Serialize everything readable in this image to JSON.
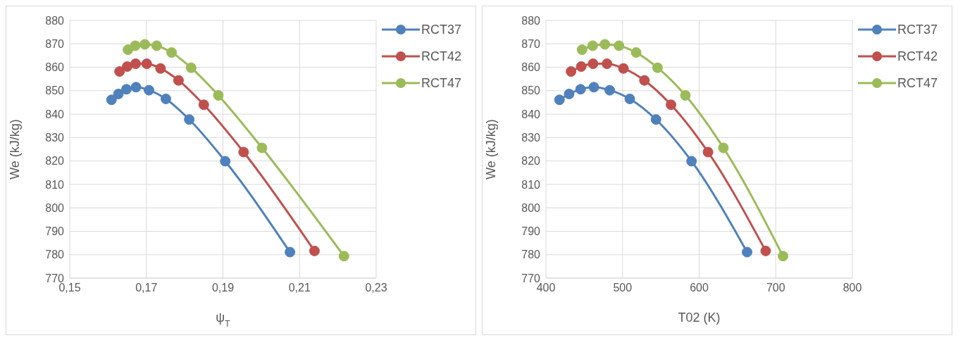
{
  "chart_data": [
    {
      "type": "line",
      "xlabel": "ψ$_{T}$",
      "ylabel": "We (kJ/kg)",
      "xlim": [
        0.15,
        0.23
      ],
      "xticks": [
        {
          "value": 0.15,
          "label": "0,15"
        },
        {
          "value": 0.17,
          "label": "0,17"
        },
        {
          "value": 0.19,
          "label": "0,19"
        },
        {
          "value": 0.21,
          "label": "0,21"
        },
        {
          "value": 0.23,
          "label": "0,23"
        }
      ],
      "ylim": [
        770,
        880
      ],
      "yticks": [
        770,
        780,
        790,
        800,
        810,
        820,
        830,
        840,
        850,
        860,
        870,
        880
      ],
      "grid": true,
      "legend": "top right",
      "marker": "circle",
      "line_style": "solid",
      "series": [
        {
          "name": "RCT37",
          "color": "#4f81bd",
          "x": [
            0.1609,
            0.1627,
            0.1648,
            0.1673,
            0.1707,
            0.1751,
            0.1812,
            0.1906,
            0.2075
          ],
          "values": [
            846.1,
            848.6,
            850.6,
            851.5,
            850.2,
            846.5,
            837.7,
            819.9,
            781.1
          ]
        },
        {
          "name": "RCT42",
          "color": "#c0504d",
          "x": [
            0.163,
            0.165,
            0.1672,
            0.1701,
            0.1737,
            0.1784,
            0.185,
            0.1954,
            0.2139
          ],
          "values": [
            858.2,
            860.3,
            861.5,
            861.5,
            859.5,
            854.4,
            844.0,
            823.8,
            781.6
          ]
        },
        {
          "name": "RCT47",
          "color": "#9bbb59",
          "x": [
            0.1652,
            0.1671,
            0.1696,
            0.1727,
            0.1766,
            0.1817,
            0.1888,
            0.2002,
            0.2216
          ],
          "values": [
            867.5,
            869.2,
            869.8,
            869.2,
            866.3,
            859.8,
            848.0,
            825.6,
            779.4
          ]
        }
      ]
    },
    {
      "type": "line",
      "xlabel": "T02 (K)",
      "ylabel": "We (kJ/kg)",
      "xlim": [
        400,
        800
      ],
      "xticks": [
        400,
        500,
        600,
        700,
        800
      ],
      "ylim": [
        770,
        880
      ],
      "yticks": [
        770,
        780,
        790,
        800,
        810,
        820,
        830,
        840,
        850,
        860,
        870,
        880
      ],
      "grid": true,
      "legend": "top right",
      "marker": "circle",
      "line_style": "solid",
      "series": [
        {
          "name": "RCT37",
          "color": "#4f81bd",
          "x": [
            417.7,
            430.3,
            445.2,
            462.6,
            483.3,
            509.5,
            543.7,
            590.1,
            662.6
          ],
          "values": [
            846.1,
            848.6,
            850.6,
            851.5,
            850.2,
            846.5,
            837.7,
            819.9,
            781.1
          ]
        },
        {
          "name": "RCT42",
          "color": "#c0504d",
          "x": [
            432.8,
            446.1,
            461.5,
            479.7,
            501.2,
            528.6,
            563.3,
            611.6,
            686.9
          ],
          "values": [
            858.2,
            860.3,
            861.5,
            861.5,
            859.5,
            854.4,
            844.0,
            823.8,
            781.6
          ]
        },
        {
          "name": "RCT47",
          "color": "#9bbb59",
          "x": [
            447.2,
            461.0,
            477.0,
            495.4,
            517.8,
            545.7,
            582.1,
            631.7,
            709.5
          ],
          "values": [
            867.5,
            869.2,
            869.8,
            869.2,
            866.3,
            859.8,
            848.0,
            825.6,
            779.4
          ]
        }
      ]
    }
  ]
}
